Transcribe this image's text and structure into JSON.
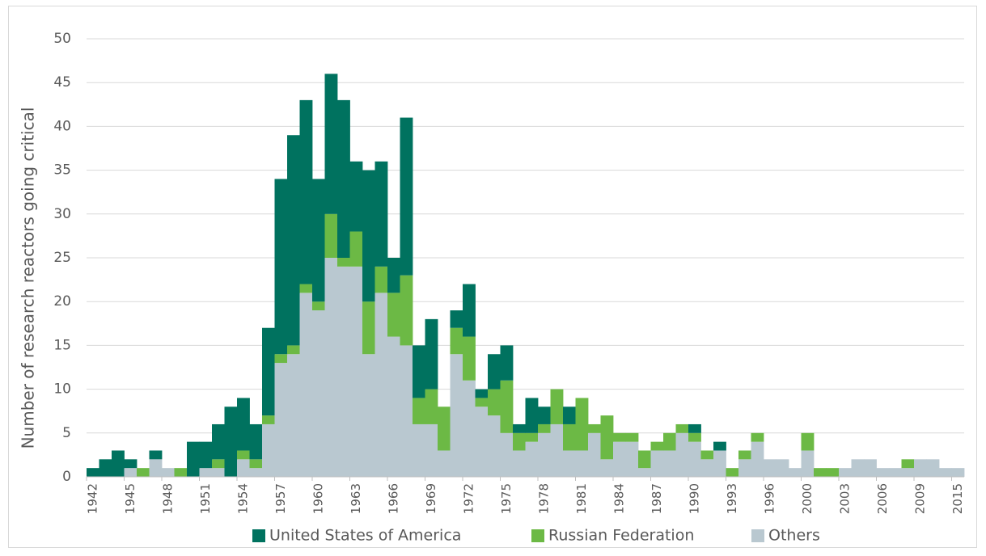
{
  "chart_data": {
    "type": "stacked-bar",
    "y_label": "Number of research reactors going critical",
    "categories": [
      "1942",
      null,
      null,
      "1945",
      null,
      null,
      "1948",
      null,
      null,
      "1951",
      null,
      null,
      "1954",
      null,
      null,
      "1957",
      null,
      null,
      "1960",
      null,
      null,
      "1963",
      null,
      null,
      "1966",
      null,
      null,
      "1969",
      null,
      null,
      "1972",
      null,
      null,
      "1975",
      null,
      null,
      "1978",
      null,
      null,
      "1981",
      null,
      null,
      "1984",
      null,
      null,
      "1987",
      null,
      null,
      "1990",
      null,
      null,
      "1993",
      null,
      null,
      "1996",
      null,
      null,
      "2000",
      null,
      null,
      "2003",
      null,
      null,
      "2006",
      null,
      null,
      "2009",
      null,
      null,
      "2015"
    ],
    "series": [
      {
        "name": "United States of America",
        "color": "#00725f",
        "values": [
          1,
          2,
          3,
          1,
          0,
          1,
          0,
          0,
          4,
          3,
          4,
          8,
          6,
          4,
          10,
          20,
          24,
          21,
          14,
          16,
          18,
          8,
          15,
          12,
          4,
          18,
          6,
          8,
          0,
          2,
          6,
          1,
          4,
          4,
          1,
          4,
          2,
          0,
          2,
          0,
          0,
          0,
          0,
          0,
          0,
          0,
          0,
          0,
          1,
          0,
          1,
          0,
          0,
          0,
          0,
          0,
          0,
          0,
          0,
          0,
          0,
          0,
          0,
          0,
          0,
          0,
          0,
          0,
          0,
          0
        ]
      },
      {
        "name": "Russian Federation",
        "color": "#6cb945",
        "values": [
          0,
          0,
          0,
          0,
          1,
          0,
          0,
          1,
          0,
          0,
          1,
          0,
          1,
          1,
          1,
          1,
          1,
          1,
          1,
          5,
          1,
          4,
          6,
          3,
          5,
          8,
          3,
          4,
          5,
          3,
          5,
          1,
          3,
          6,
          2,
          1,
          1,
          4,
          3,
          6,
          1,
          5,
          1,
          1,
          2,
          1,
          2,
          1,
          1,
          1,
          0,
          1,
          1,
          1,
          0,
          0,
          0,
          2,
          1,
          1,
          0,
          0,
          0,
          0,
          0,
          1,
          0,
          0,
          0,
          0
        ]
      },
      {
        "name": "Others",
        "color": "#b9c8d0",
        "values": [
          0,
          0,
          0,
          1,
          0,
          2,
          1,
          0,
          0,
          1,
          1,
          0,
          2,
          1,
          6,
          13,
          14,
          21,
          19,
          25,
          24,
          24,
          14,
          21,
          16,
          15,
          6,
          6,
          3,
          14,
          11,
          8,
          7,
          5,
          3,
          4,
          5,
          6,
          3,
          3,
          5,
          2,
          4,
          4,
          1,
          3,
          3,
          5,
          4,
          2,
          3,
          0,
          2,
          4,
          2,
          2,
          1,
          3,
          0,
          0,
          1,
          2,
          2,
          1,
          1,
          1,
          2,
          2,
          1,
          1
        ]
      }
    ],
    "stack_order": [
      "Others",
      "Russian Federation",
      "United States of America"
    ],
    "ylim": [
      0,
      50
    ],
    "yticks": [
      0,
      5,
      10,
      15,
      20,
      25,
      30,
      35,
      40,
      45,
      50
    ],
    "grid": true,
    "legend": "bottom"
  }
}
